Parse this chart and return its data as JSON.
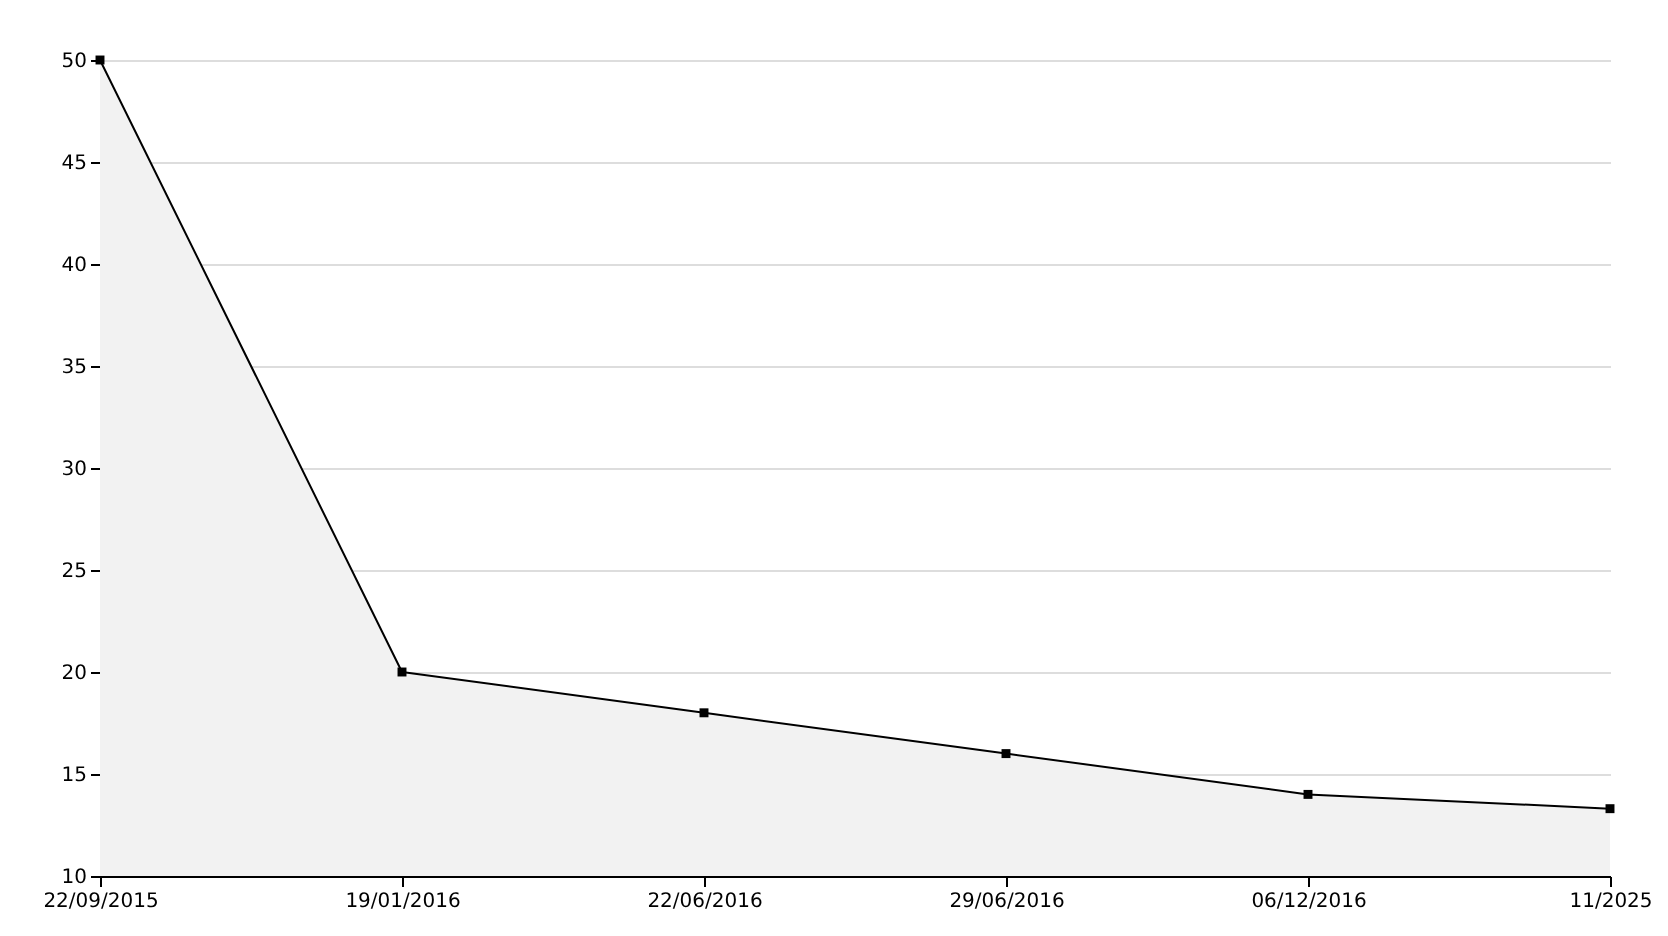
{
  "chart_data": {
    "type": "area",
    "categories": [
      "22/09/2015",
      "19/01/2016",
      "22/06/2016",
      "29/06/2016",
      "06/12/2016",
      "11/2025"
    ],
    "series": [
      {
        "color": "#000000",
        "values": [
          50,
          20,
          18,
          16,
          14,
          13.3
        ]
      }
    ],
    "ylim": [
      10,
      50
    ],
    "yticks": [
      10,
      15,
      20,
      25,
      30,
      35,
      40,
      45,
      50
    ],
    "grid": "y",
    "marker": "square",
    "line_style": "solid"
  }
}
